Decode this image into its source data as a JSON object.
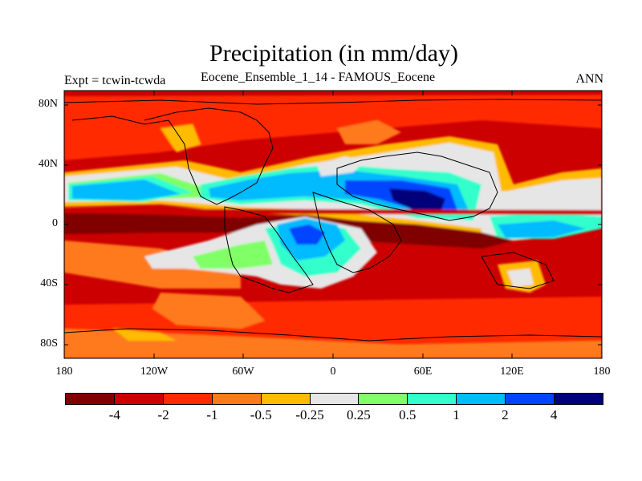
{
  "title": "Precipitation (in mm/day)",
  "subtitle": "Eocene_Ensemble_1_14 - FAMOUS_Eocene",
  "expt_label": "Expt = tcwin-tcwda",
  "season": "ANN",
  "y_ticks": [
    "80N",
    "40N",
    "0",
    "40S",
    "80S"
  ],
  "x_ticks": [
    "180",
    "120W",
    "60W",
    "0",
    "60E",
    "120E",
    "180"
  ],
  "colorbar": {
    "colors": [
      "#800000",
      "#cc0000",
      "#ff2a00",
      "#ff7a1a",
      "#ffbb00",
      "#e6e6e6",
      "#80ff66",
      "#33ffcc",
      "#00bbff",
      "#0044ff",
      "#00007a"
    ],
    "labels": [
      "-4",
      "-2",
      "-1",
      "-0.5",
      "-0.25",
      "0.25",
      "0.5",
      "1",
      "2",
      "4"
    ]
  },
  "map": {
    "domain": "global precipitation difference field",
    "lon_range": [
      -180,
      180
    ],
    "lat_range": [
      -90,
      90
    ],
    "background": "#cc0000"
  }
}
